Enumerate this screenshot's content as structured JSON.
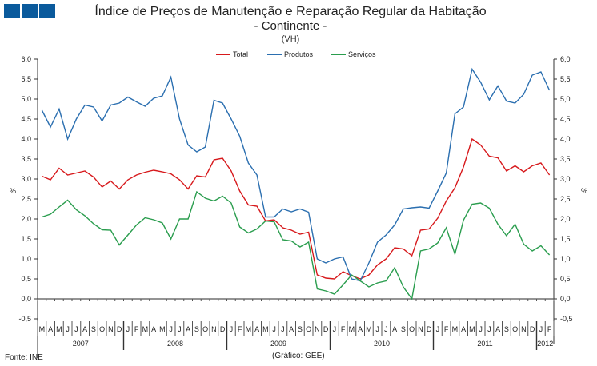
{
  "logo_colors": "#0a5a9c",
  "chart_data": {
    "type": "line",
    "title": "Índice de Preços de Manutenção e Reparação Regular da Habitação",
    "subtitle": "- Continente -",
    "unit_note": "(VH)",
    "ylabel": "%",
    "ylim": [
      -0.5,
      6.0
    ],
    "yticks": [
      "6,0",
      "5,5",
      "5,0",
      "4,5",
      "4,0",
      "3,5",
      "3,0",
      "2,5",
      "2,0",
      "1,5",
      "1,0",
      "0,5",
      "0,0",
      "-0,5"
    ],
    "legend_position": "top-center",
    "months": [
      "M",
      "A",
      "M",
      "J",
      "J",
      "A",
      "S",
      "O",
      "N",
      "D",
      "J",
      "F",
      "M",
      "A",
      "M",
      "J",
      "J",
      "A",
      "S",
      "O",
      "N",
      "D",
      "J",
      "F",
      "M",
      "A",
      "M",
      "J",
      "J",
      "A",
      "S",
      "O",
      "N",
      "D",
      "J",
      "F",
      "M",
      "A",
      "M",
      "J",
      "J",
      "A",
      "S",
      "O",
      "N",
      "D",
      "J",
      "F",
      "M",
      "A",
      "M",
      "J",
      "J",
      "A",
      "S",
      "O",
      "N",
      "D",
      "J",
      "F"
    ],
    "years": [
      {
        "label": "2007",
        "months": 10
      },
      {
        "label": "2008",
        "months": 12
      },
      {
        "label": "2009",
        "months": 12
      },
      {
        "label": "2010",
        "months": 12
      },
      {
        "label": "2011",
        "months": 12
      },
      {
        "label": "2012",
        "months": 2
      }
    ],
    "series": [
      {
        "name": "Total",
        "color": "#d7191c",
        "values": [
          3.07,
          2.98,
          3.27,
          3.1,
          3.15,
          3.2,
          3.05,
          2.8,
          2.95,
          2.75,
          2.98,
          3.1,
          3.17,
          3.22,
          3.18,
          3.13,
          2.98,
          2.75,
          3.08,
          3.05,
          3.48,
          3.52,
          3.2,
          2.7,
          2.35,
          2.32,
          1.95,
          1.98,
          1.78,
          1.72,
          1.62,
          1.67,
          0.6,
          0.52,
          0.5,
          0.68,
          0.58,
          0.5,
          0.6,
          0.85,
          1.0,
          1.28,
          1.25,
          1.08,
          1.72,
          1.75,
          2.02,
          2.45,
          2.78,
          3.3,
          4.0,
          3.85,
          3.57,
          3.53,
          3.2,
          3.33,
          3.18,
          3.33,
          3.4,
          3.1
        ]
      },
      {
        "name": "Produtos",
        "color": "#2b6fb0",
        "values": [
          4.72,
          4.3,
          4.75,
          4.0,
          4.5,
          4.85,
          4.8,
          4.45,
          4.85,
          4.9,
          5.05,
          4.93,
          4.82,
          5.02,
          5.08,
          5.55,
          4.5,
          3.85,
          3.68,
          3.8,
          4.97,
          4.9,
          4.5,
          4.07,
          3.4,
          3.1,
          2.05,
          2.05,
          2.25,
          2.18,
          2.25,
          2.17,
          1.0,
          0.9,
          1.0,
          1.05,
          0.5,
          0.45,
          0.9,
          1.42,
          1.6,
          1.85,
          2.25,
          2.28,
          2.3,
          2.27,
          2.7,
          3.15,
          4.63,
          4.8,
          5.75,
          5.42,
          4.98,
          5.33,
          4.95,
          4.9,
          5.12,
          5.6,
          5.68,
          5.22
        ]
      },
      {
        "name": "Serviços",
        "color": "#2a9d4e",
        "values": [
          2.05,
          2.12,
          2.3,
          2.47,
          2.23,
          2.08,
          1.88,
          1.73,
          1.72,
          1.35,
          1.6,
          1.85,
          2.03,
          1.98,
          1.9,
          1.5,
          2.0,
          2.0,
          2.68,
          2.52,
          2.45,
          2.57,
          2.4,
          1.8,
          1.65,
          1.75,
          1.95,
          1.93,
          1.48,
          1.45,
          1.3,
          1.42,
          0.25,
          0.2,
          0.12,
          0.35,
          0.6,
          0.45,
          0.3,
          0.4,
          0.45,
          0.78,
          0.3,
          0.0,
          1.2,
          1.25,
          1.4,
          1.78,
          1.12,
          1.97,
          2.37,
          2.4,
          2.27,
          1.87,
          1.58,
          1.87,
          1.37,
          1.2,
          1.33,
          1.1
        ]
      }
    ]
  },
  "footer": {
    "source": "Fonte: INE",
    "credit": "(Gráfico: GEE)"
  }
}
